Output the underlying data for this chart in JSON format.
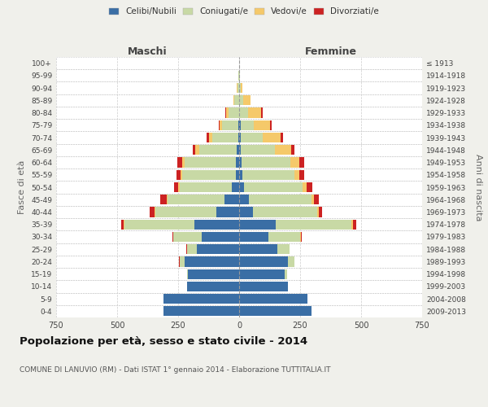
{
  "age_groups": [
    "0-4",
    "5-9",
    "10-14",
    "15-19",
    "20-24",
    "25-29",
    "30-34",
    "35-39",
    "40-44",
    "45-49",
    "50-54",
    "55-59",
    "60-64",
    "65-69",
    "70-74",
    "75-79",
    "80-84",
    "85-89",
    "90-94",
    "95-99",
    "100+"
  ],
  "birth_years": [
    "2009-2013",
    "2004-2008",
    "1999-2003",
    "1994-1998",
    "1989-1993",
    "1984-1988",
    "1979-1983",
    "1974-1978",
    "1969-1973",
    "1964-1968",
    "1959-1963",
    "1954-1958",
    "1949-1953",
    "1944-1948",
    "1939-1943",
    "1934-1938",
    "1929-1933",
    "1924-1928",
    "1919-1923",
    "1914-1918",
    "≤ 1913"
  ],
  "males": {
    "celibi": [
      310,
      310,
      215,
      210,
      225,
      175,
      155,
      185,
      95,
      60,
      30,
      15,
      15,
      10,
      5,
      5,
      0,
      0,
      0,
      0,
      0
    ],
    "coniugati": [
      0,
      0,
      0,
      5,
      20,
      40,
      115,
      285,
      250,
      235,
      215,
      220,
      210,
      155,
      105,
      65,
      45,
      20,
      8,
      2,
      0
    ],
    "vedovi": [
      0,
      0,
      0,
      0,
      0,
      0,
      0,
      2,
      2,
      2,
      5,
      5,
      8,
      15,
      15,
      10,
      10,
      5,
      2,
      0,
      0
    ],
    "divorziati": [
      0,
      0,
      0,
      0,
      2,
      2,
      5,
      10,
      20,
      25,
      18,
      18,
      20,
      10,
      8,
      5,
      2,
      0,
      0,
      0,
      0
    ]
  },
  "females": {
    "nubili": [
      295,
      280,
      200,
      185,
      200,
      155,
      120,
      150,
      55,
      40,
      20,
      12,
      10,
      8,
      5,
      5,
      0,
      0,
      0,
      0,
      0
    ],
    "coniugate": [
      0,
      0,
      0,
      10,
      25,
      50,
      130,
      310,
      265,
      255,
      240,
      215,
      200,
      140,
      90,
      55,
      35,
      15,
      5,
      2,
      0
    ],
    "vedove": [
      0,
      0,
      0,
      0,
      0,
      0,
      2,
      5,
      5,
      10,
      15,
      20,
      35,
      65,
      75,
      65,
      55,
      30,
      8,
      2,
      0
    ],
    "divorziate": [
      0,
      0,
      0,
      0,
      0,
      2,
      5,
      15,
      15,
      20,
      25,
      20,
      20,
      12,
      10,
      8,
      5,
      2,
      0,
      0,
      0
    ]
  },
  "colors": {
    "celibi_nubili": "#3a6ea5",
    "coniugati_e": "#c8d9a5",
    "vedovi_e": "#f5c96a",
    "divorziati_e": "#cc2222"
  },
  "xlim": 750,
  "title": "Popolazione per età, sesso e stato civile - 2014",
  "subtitle": "COMUNE DI LANUVIO (RM) - Dati ISTAT 1° gennaio 2014 - Elaborazione TUTTITALIA.IT",
  "xlabel_left": "Maschi",
  "xlabel_right": "Femmine",
  "ylabel_left": "Fasce di età",
  "ylabel_right": "Anni di nascita",
  "legend_labels": [
    "Celibi/Nubili",
    "Coniugati/e",
    "Vedovi/e",
    "Divorziati/e"
  ],
  "background_color": "#f0f0eb",
  "plot_background": "#ffffff",
  "grid_color": "#cccccc"
}
